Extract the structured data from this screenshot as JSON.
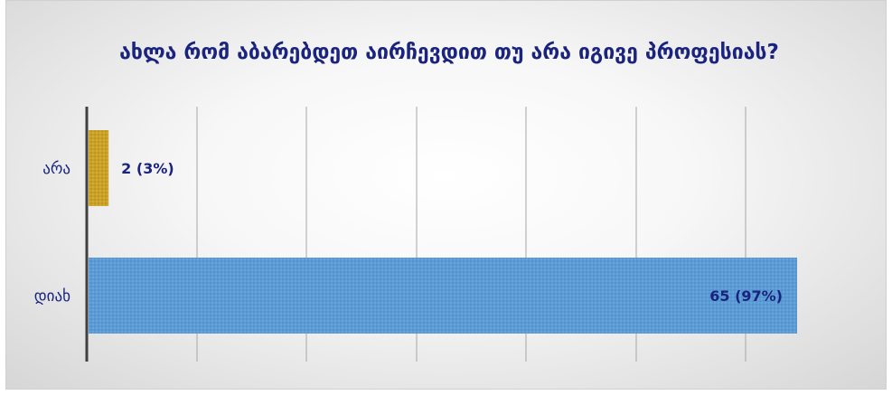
{
  "chart_data": {
    "type": "bar",
    "orientation": "horizontal",
    "title": "ახლა რომ აბარებდეთ აირჩევდით თუ არა იგივე პროფესიას?",
    "categories": [
      "არა",
      "დიახ"
    ],
    "values": [
      2,
      65
    ],
    "data_labels": [
      "2  (3%)",
      "65 (97%)"
    ],
    "bar_colors": [
      "#c9a227",
      "#5b9bd5"
    ],
    "xlim": [
      0,
      65
    ],
    "grid": true,
    "legend": "none"
  },
  "colors": {
    "title": "#1a237e",
    "axis": "#404040",
    "gridline": "#a6a6a6"
  }
}
